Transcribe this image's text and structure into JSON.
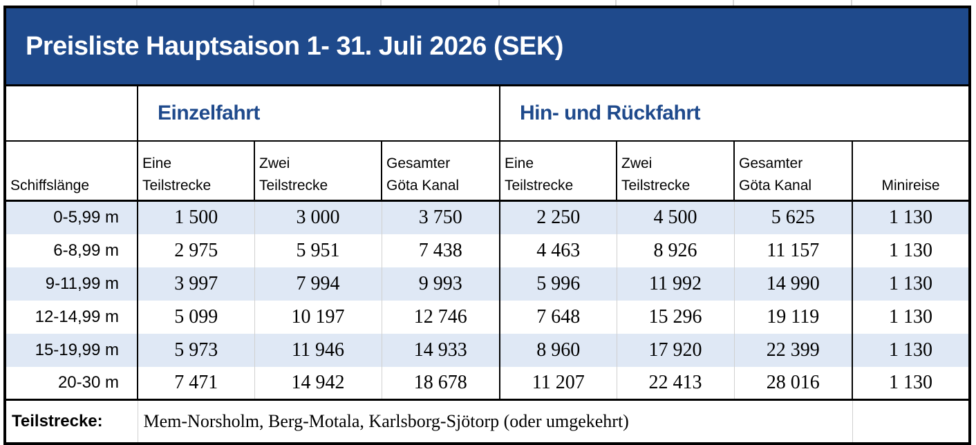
{
  "title": "Preisliste Hauptsaison 1- 31. Juli  2026 (SEK)",
  "groups": {
    "single": "Einzelfahrt",
    "return": "Hin- und Rückfahrt"
  },
  "columns": {
    "length": "Schiffslänge",
    "single": [
      {
        "line1": "Eine",
        "line2": "Teilstrecke"
      },
      {
        "line1": "Zwei",
        "line2": "Teilstrecke"
      },
      {
        "line1": "Gesamter",
        "line2": "Göta Kanal"
      }
    ],
    "return": [
      {
        "line1": "Eine",
        "line2": "Teilstrecke"
      },
      {
        "line1": "Zwei",
        "line2": "Teilstrecke"
      },
      {
        "line1": "Gesamter",
        "line2": "Göta Kanal"
      }
    ],
    "mini": "Minireise"
  },
  "rows": [
    {
      "length": "0-5,99 m",
      "values": [
        "1 500",
        "3 000",
        "3 750",
        "2 250",
        "4 500",
        "5 625",
        "1 130"
      ]
    },
    {
      "length": "6-8,99 m",
      "values": [
        "2 975",
        "5 951",
        "7 438",
        "4 463",
        "8 926",
        "11 157",
        "1 130"
      ]
    },
    {
      "length": "9-11,99 m",
      "values": [
        "3 997",
        "7 994",
        "9 993",
        "5 996",
        "11 992",
        "14 990",
        "1 130"
      ]
    },
    {
      "length": "12-14,99 m",
      "values": [
        "5 099",
        "10 197",
        "12 746",
        "7 648",
        "15 296",
        "19 119",
        "1 130"
      ]
    },
    {
      "length": "15-19,99 m",
      "values": [
        "5 973",
        "11 946",
        "14 933",
        "8 960",
        "17 920",
        "22 399",
        "1 130"
      ]
    },
    {
      "length": "20-30 m",
      "values": [
        "7 471",
        "14 942",
        "18 678",
        "11 207",
        "22 413",
        "28 016",
        "1 130"
      ]
    }
  ],
  "footer": {
    "label": "Teilstrecke:",
    "text": "Mem-Norsholm, Berg-Motala, Karlsborg-Sjötorp (oder umgekehrt)"
  },
  "colors": {
    "header_blue": "#1f4a8c",
    "row_alt": "#dfe8f5"
  }
}
